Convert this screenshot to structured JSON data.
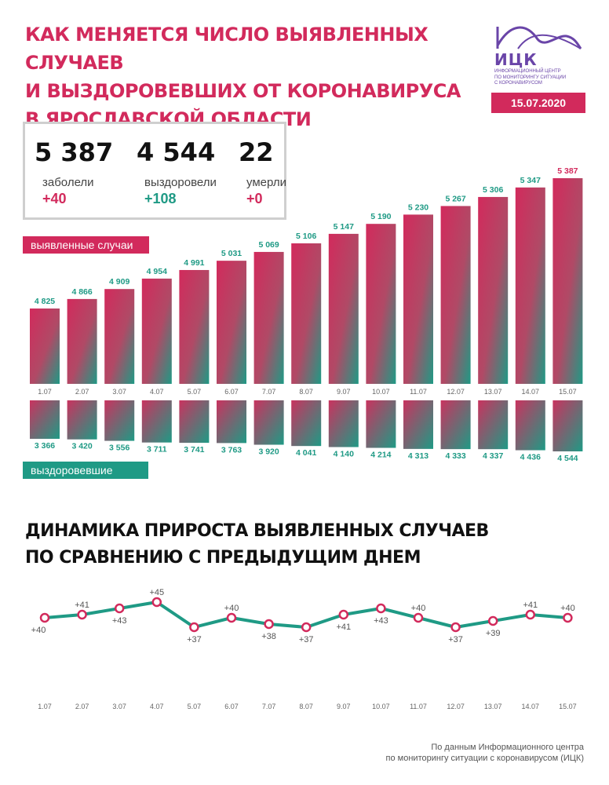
{
  "header": {
    "title_lines": [
      "КАК МЕНЯЕТСЯ ЧИСЛО ВЫЯВЛЕННЫХ СЛУЧАЕВ",
      "И ВЫЗДОРОВЕВШИХ ОТ КОРОНАВИРУСА",
      "В ЯРОСЛАВСКОЙ ОБЛАСТИ"
    ]
  },
  "logo": {
    "name": "ИЦК",
    "subtitle_lines": [
      "Информационный центр",
      "по мониторингу ситуации",
      "с коронавирусом"
    ],
    "date": "15.07.2020"
  },
  "summary": [
    {
      "value": "5 387",
      "label": "заболели",
      "delta": "+40",
      "color": "#d22a5c"
    },
    {
      "value": "4 544",
      "label": "выздоровели",
      "delta": "+108",
      "color": "#1f9a85"
    },
    {
      "value": "22",
      "label": "умерли",
      "delta": "+0",
      "color": "#d22a5c"
    }
  ],
  "labels": {
    "cases": "выявленные случаи",
    "recovered": "выздоровевшие"
  },
  "colors": {
    "accent": "#d22a5c",
    "teal": "#1f9a85",
    "purple": "#6a45a8"
  },
  "chart_data": [
    {
      "type": "bar",
      "categories": [
        "1.07",
        "2.07",
        "3.07",
        "4.07",
        "5.07",
        "6.07",
        "7.07",
        "8.07",
        "9.07",
        "10.07",
        "11.07",
        "12.07",
        "13.07",
        "14.07",
        "15.07"
      ],
      "series": [
        {
          "name": "выявленные случаи",
          "values": [
            4825,
            4866,
            4909,
            4954,
            4991,
            5031,
            5069,
            5106,
            5147,
            5190,
            5230,
            5267,
            5306,
            5347,
            5387
          ],
          "labels": [
            "4 825",
            "4 866",
            "4 909",
            "4 954",
            "4 991",
            "5 031",
            "5 069",
            "5 106",
            "5 147",
            "5 190",
            "5 230",
            "5 267",
            "5 306",
            "5 347",
            "5 387"
          ]
        },
        {
          "name": "выздоровевшие",
          "values": [
            3366,
            3420,
            3556,
            3711,
            3741,
            3763,
            3920,
            4041,
            4140,
            4214,
            4313,
            4333,
            4337,
            4436,
            4544
          ],
          "labels": [
            "3 366",
            "3 420",
            "3 556",
            "3 711",
            "3 741",
            "3 763",
            "3 920",
            "4 041",
            "4 140",
            "4 214",
            "4 313",
            "4 333",
            "4 337",
            "4 436",
            "4 544"
          ]
        }
      ]
    },
    {
      "type": "line",
      "title_lines": [
        "ДИНАМИКА ПРИРОСТА ВЫЯВЛЕННЫХ СЛУЧАЕВ",
        "ПО СРАВНЕНИЮ С ПРЕДЫДУЩИМ ДНЕМ"
      ],
      "categories": [
        "1.07",
        "2.07",
        "3.07",
        "4.07",
        "5.07",
        "6.07",
        "7.07",
        "8.07",
        "9.07",
        "10.07",
        "11.07",
        "12.07",
        "13.07",
        "14.07",
        "15.07"
      ],
      "values": [
        40,
        41,
        43,
        45,
        37,
        40,
        38,
        37,
        41,
        43,
        40,
        37,
        39,
        41,
        40
      ],
      "labels": [
        "+40",
        "+41",
        "+43",
        "+45",
        "+37",
        "+40",
        "+38",
        "+37",
        "+41",
        "+43",
        "+40",
        "+37",
        "+39",
        "+41",
        "+40"
      ]
    }
  ],
  "footer": {
    "source_lines": [
      "По данным Информационного центра",
      "по мониторингу ситуации с коронавирусом (ИЦК)"
    ]
  }
}
